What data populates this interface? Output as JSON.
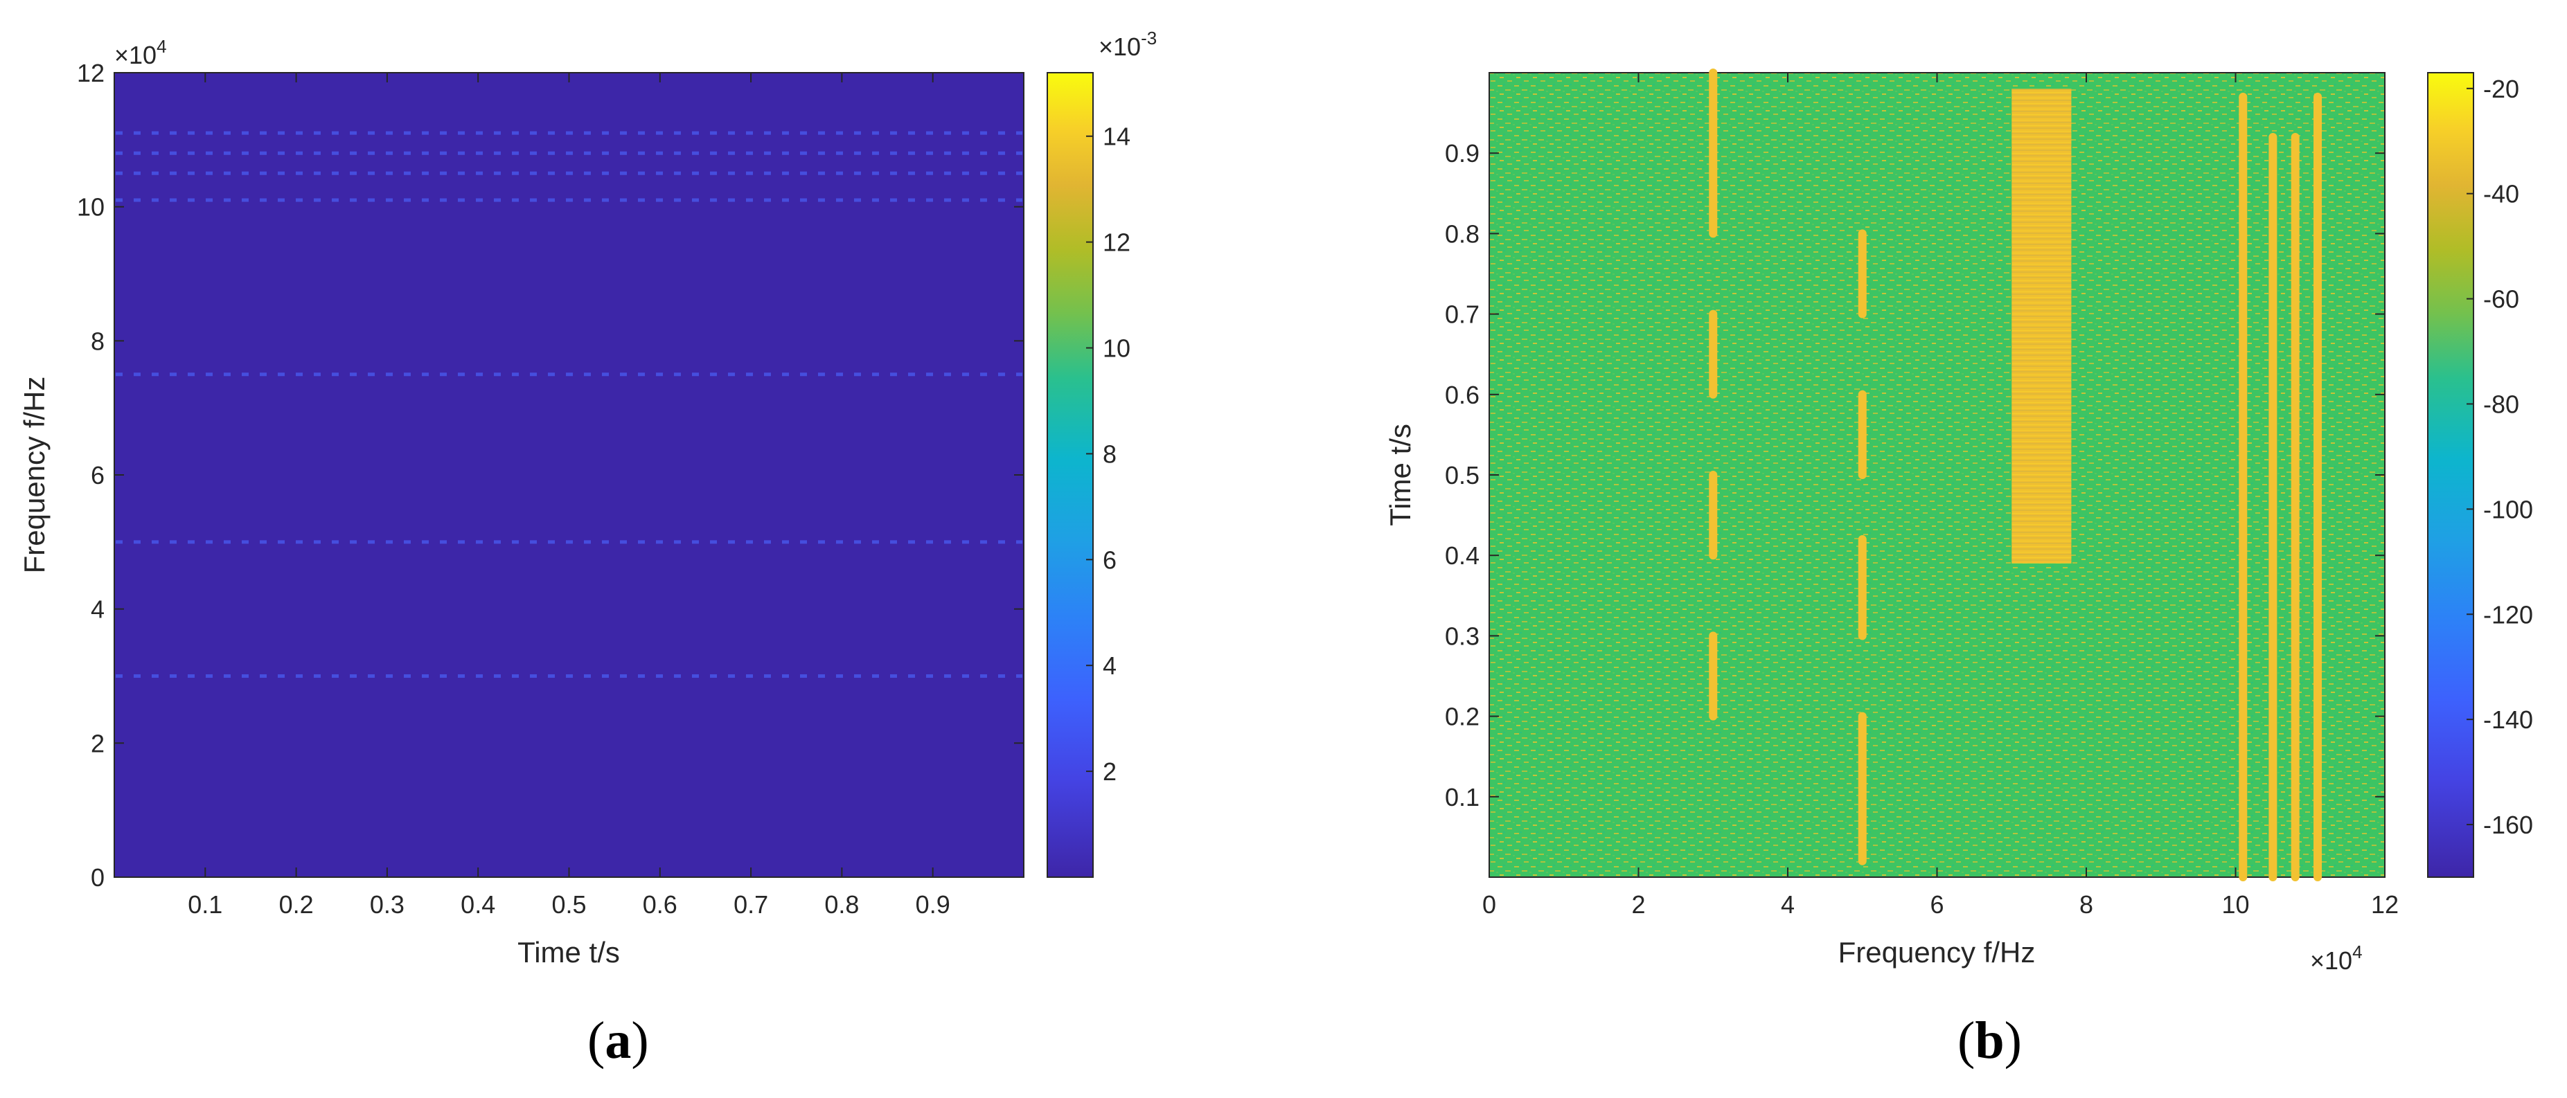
{
  "chart_data": [
    {
      "panel": "(a)",
      "type": "heatmap",
      "xlabel": "Time t/s",
      "ylabel": "Frequency f/Hz",
      "xlim": [
        0,
        1.0
      ],
      "ylim": [
        0,
        120000
      ],
      "x_ticks": [
        "0.1",
        "0.2",
        "0.3",
        "0.4",
        "0.5",
        "0.6",
        "0.7",
        "0.8",
        "0.9"
      ],
      "y_ticks": [
        "0",
        "2",
        "4",
        "6",
        "8",
        "10",
        "12"
      ],
      "y_exponent": "×10^4",
      "colorbar": {
        "label_exponent": "×10^-3",
        "range": [
          0,
          0.0152
        ],
        "ticks": [
          "2",
          "4",
          "6",
          "8",
          "10",
          "12",
          "14"
        ],
        "colormap": "parula"
      },
      "background_color": "#3d26a8",
      "highlight_bands": [
        {
          "frequency": 111000
        },
        {
          "frequency": 108000
        },
        {
          "frequency": 105000
        },
        {
          "frequency": 101000
        },
        {
          "frequency": 75000
        },
        {
          "frequency": 50000
        },
        {
          "frequency": 30000
        }
      ]
    },
    {
      "panel": "(b)",
      "type": "heatmap",
      "xlabel": "Frequency f/Hz",
      "ylabel": "Time t/s",
      "xlim": [
        0,
        120000
      ],
      "ylim": [
        0,
        1.0
      ],
      "x_ticks": [
        "0",
        "2",
        "4",
        "6",
        "8",
        "10",
        "12"
      ],
      "x_exponent": "×10^4",
      "y_ticks": [
        "0.1",
        "0.2",
        "0.3",
        "0.4",
        "0.5",
        "0.6",
        "0.7",
        "0.8",
        "0.9"
      ],
      "colorbar": {
        "range": [
          -170,
          -17
        ],
        "ticks": [
          "-20",
          "-40",
          "-60",
          "-80",
          "-100",
          "-120",
          "-140",
          "-160"
        ],
        "colormap": "parula"
      },
      "background_color": "#3ec563",
      "signal_lines": [
        {
          "frequency": 30000,
          "segments": [
            [
              0.2,
              0.3
            ],
            [
              0.4,
              0.5
            ],
            [
              0.6,
              0.7
            ],
            [
              0.8,
              1.0
            ]
          ]
        },
        {
          "frequency": 50000,
          "segments": [
            [
              0.02,
              0.2
            ],
            [
              0.3,
              0.42
            ],
            [
              0.5,
              0.6
            ],
            [
              0.7,
              0.8
            ]
          ]
        },
        {
          "frequency": 101000,
          "segments": [
            [
              0.0,
              0.97
            ]
          ]
        },
        {
          "frequency": 105000,
          "segments": [
            [
              0.0,
              0.92
            ]
          ]
        },
        {
          "frequency": 108000,
          "segments": [
            [
              0.0,
              0.92
            ]
          ]
        },
        {
          "frequency": 111000,
          "segments": [
            [
              0.0,
              0.97
            ]
          ]
        }
      ],
      "signal_band": {
        "frequency_range": [
          70000,
          78000
        ],
        "time_range": [
          0.39,
          0.98
        ]
      }
    }
  ],
  "captions": {
    "a": "a",
    "b": "b"
  }
}
